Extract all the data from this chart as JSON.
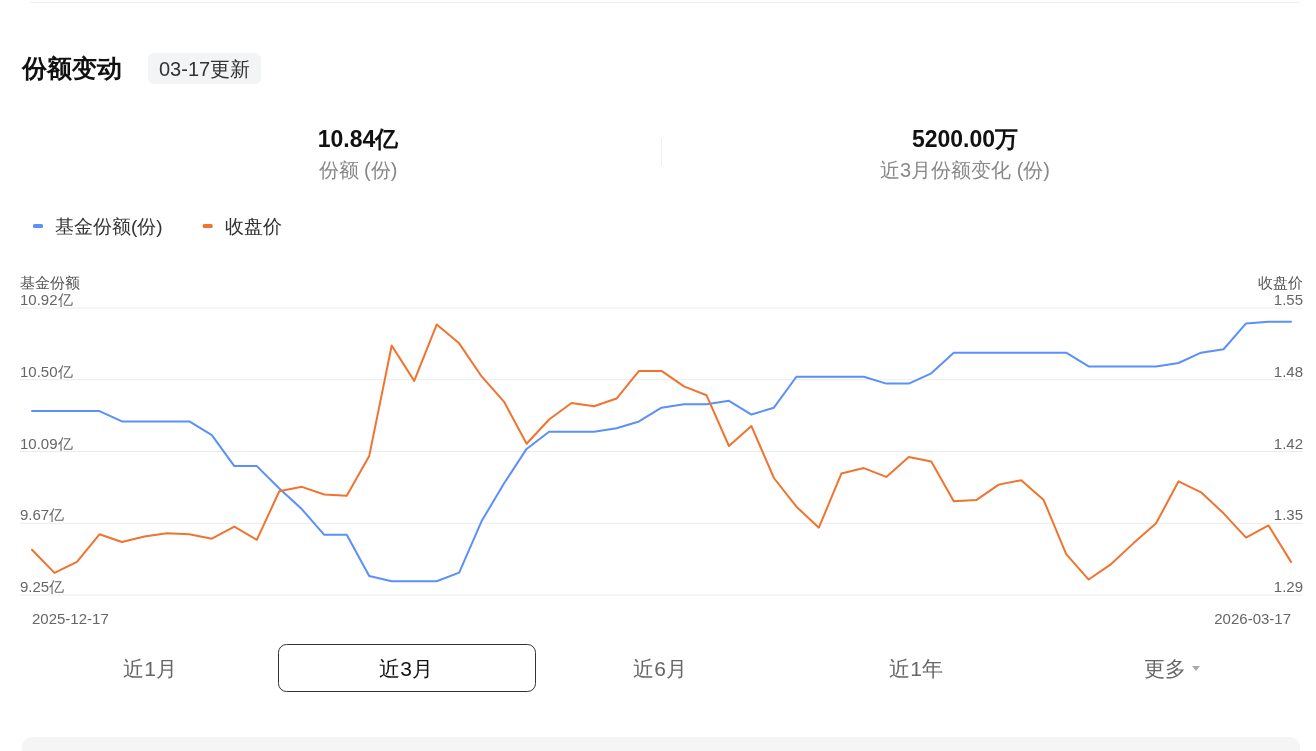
{
  "chart_data": {
    "type": "line",
    "title": "份额变动",
    "subtitle": "03-17更新",
    "ylabel": "基金份额",
    "y2label": "收盘价",
    "annotations": [
      "10.84亿",
      "份额 (份)",
      "5200.00万",
      "近3月份额变化 (份)",
      "近1月",
      "近3月",
      "近6月",
      "近1年",
      "更多",
      "2025-12-17",
      "2026-03-17"
    ],
    "categories": [
      null,
      null,
      null,
      null,
      null,
      null,
      null,
      null,
      null,
      null,
      null,
      null,
      null,
      null,
      null,
      null,
      null,
      null,
      null,
      null,
      null,
      null,
      null,
      null,
      null,
      null,
      null,
      null,
      null,
      null,
      null,
      null,
      null,
      null,
      null,
      null,
      null,
      null,
      null,
      null,
      null,
      null,
      null,
      null,
      null,
      null,
      null,
      null,
      null,
      null,
      null,
      null,
      null,
      null,
      null,
      null,
      null
    ],
    "series": [
      {
        "name": "基金份额(份)",
        "color": "#5b8ff9",
        "values": [
          10.32,
          10.32,
          10.32,
          10.32,
          10.26,
          10.26,
          10.26,
          10.26,
          10.18,
          10.0,
          10.0,
          9.87,
          9.75,
          9.6,
          9.6,
          9.36,
          9.33,
          9.33,
          9.33,
          9.38,
          9.68,
          9.9,
          10.1,
          10.2,
          10.2,
          10.2,
          10.22,
          10.26,
          10.34,
          10.36,
          10.36,
          10.38,
          10.3,
          10.34,
          10.52,
          10.52,
          10.52,
          10.52,
          10.48,
          10.48,
          10.54,
          10.66,
          10.66,
          10.66,
          10.66,
          10.66,
          10.66,
          10.58,
          10.58,
          10.58,
          10.58,
          10.6,
          10.66,
          10.68,
          10.83,
          10.84,
          10.84
        ]
      },
      {
        "name": "收盘价",
        "color": "#f0732f",
        "axis": "y2",
        "values": [
          1.331,
          1.31,
          1.32,
          1.345,
          1.338,
          1.343,
          1.346,
          1.345,
          1.341,
          1.352,
          1.34,
          1.384,
          1.388,
          1.381,
          1.38,
          1.416,
          1.516,
          1.484,
          1.535,
          1.518,
          1.488,
          1.465,
          1.427,
          1.449,
          1.464,
          1.461,
          1.468,
          1.493,
          1.493,
          1.479,
          1.471,
          1.425,
          1.443,
          1.396,
          1.37,
          1.351,
          1.4,
          1.405,
          1.397,
          1.415,
          1.411,
          1.375,
          1.376,
          1.39,
          1.394,
          1.376,
          1.327,
          1.304,
          1.318,
          1.337,
          1.355,
          1.393,
          1.383,
          1.364,
          1.342,
          1.353,
          1.32
        ]
      }
    ],
    "ylim": [
      9.25,
      10.92
    ],
    "yticks": [
      {
        "value": 9.25,
        "label": "9.25亿"
      },
      {
        "value": 9.6675,
        "label": "9.67亿"
      },
      {
        "value": 10.085,
        "label": "10.09亿"
      },
      {
        "value": 10.5025,
        "label": "10.50亿"
      },
      {
        "value": 10.92,
        "label": "10.92亿"
      }
    ],
    "y2lim": [
      1.29,
      1.55
    ],
    "y2ticks": [
      1.29,
      {
        "value": 1.355,
        "label": "1.35"
      },
      1.42,
      {
        "value": 1.485,
        "label": "1.48"
      },
      1.55
    ],
    "grid": "y",
    "legend": "top left"
  }
}
